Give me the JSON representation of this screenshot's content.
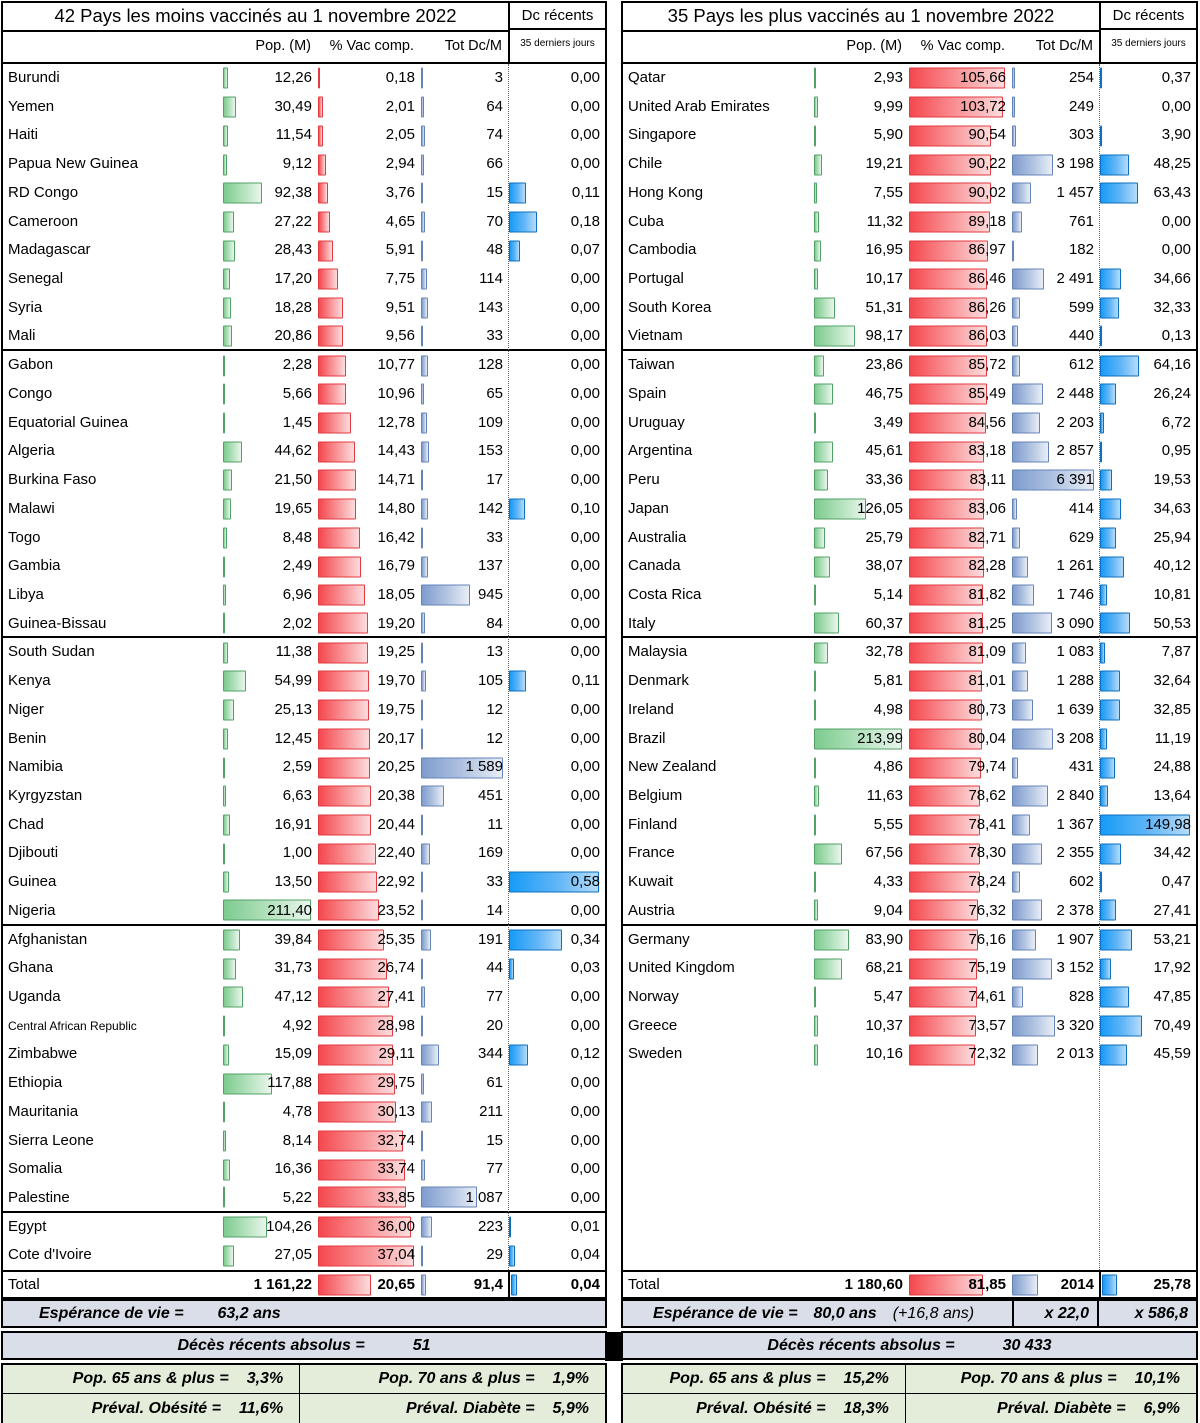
{
  "chart_data": {
    "type": "table",
    "tables": [
      {
        "title": "42 Pays les moins vaccinés au 1 novembre 2022",
        "headers": {
          "pop": "Pop. (M)",
          "vac": "% Vac comp.",
          "tot": "Tot Dc/M",
          "dc": "Dc récents",
          "dc_sub": "35 derniers jours"
        },
        "rows": [
          [
            "Burundi",
            "12,26",
            "0,18",
            "3",
            "0,00"
          ],
          [
            "Yemen",
            "30,49",
            "2,01",
            "64",
            "0,00"
          ],
          [
            "Haiti",
            "11,54",
            "2,05",
            "74",
            "0,00"
          ],
          [
            "Papua New Guinea",
            "9,12",
            "2,94",
            "66",
            "0,00"
          ],
          [
            "RD Congo",
            "92,38",
            "3,76",
            "15",
            "0,11"
          ],
          [
            "Cameroon",
            "27,22",
            "4,65",
            "70",
            "0,18"
          ],
          [
            "Madagascar",
            "28,43",
            "5,91",
            "48",
            "0,07"
          ],
          [
            "Senegal",
            "17,20",
            "7,75",
            "114",
            "0,00"
          ],
          [
            "Syria",
            "18,28",
            "9,51",
            "143",
            "0,00"
          ],
          [
            "Mali",
            "20,86",
            "9,56",
            "33",
            "0,00"
          ],
          [
            "Gabon",
            "2,28",
            "10,77",
            "128",
            "0,00"
          ],
          [
            "Congo",
            "5,66",
            "10,96",
            "65",
            "0,00"
          ],
          [
            "Equatorial Guinea",
            "1,45",
            "12,78",
            "109",
            "0,00"
          ],
          [
            "Algeria",
            "44,62",
            "14,43",
            "153",
            "0,00"
          ],
          [
            "Burkina Faso",
            "21,50",
            "14,71",
            "17",
            "0,00"
          ],
          [
            "Malawi",
            "19,65",
            "14,80",
            "142",
            "0,10"
          ],
          [
            "Togo",
            "8,48",
            "16,42",
            "33",
            "0,00"
          ],
          [
            "Gambia",
            "2,49",
            "16,79",
            "137",
            "0,00"
          ],
          [
            "Libya",
            "6,96",
            "18,05",
            "945",
            "0,00"
          ],
          [
            "Guinea-Bissau",
            "2,02",
            "19,20",
            "84",
            "0,00"
          ],
          [
            "South Sudan",
            "11,38",
            "19,25",
            "13",
            "0,00"
          ],
          [
            "Kenya",
            "54,99",
            "19,70",
            "105",
            "0,11"
          ],
          [
            "Niger",
            "25,13",
            "19,75",
            "12",
            "0,00"
          ],
          [
            "Benin",
            "12,45",
            "20,17",
            "12",
            "0,00"
          ],
          [
            "Namibia",
            "2,59",
            "20,25",
            "1 589",
            "0,00"
          ],
          [
            "Kyrgyzstan",
            "6,63",
            "20,38",
            "451",
            "0,00"
          ],
          [
            "Chad",
            "16,91",
            "20,44",
            "11",
            "0,00"
          ],
          [
            "Djibouti",
            "1,00",
            "22,40",
            "169",
            "0,00"
          ],
          [
            "Guinea",
            "13,50",
            "22,92",
            "33",
            "0,58"
          ],
          [
            "Nigeria",
            "211,40",
            "23,52",
            "14",
            "0,00"
          ],
          [
            "Afghanistan",
            "39,84",
            "25,35",
            "191",
            "0,34"
          ],
          [
            "Ghana",
            "31,73",
            "26,74",
            "44",
            "0,03"
          ],
          [
            "Uganda",
            "47,12",
            "27,41",
            "77",
            "0,00"
          ],
          [
            "Central African Republic",
            "4,92",
            "28,98",
            "20",
            "0,00"
          ],
          [
            "Zimbabwe",
            "15,09",
            "29,11",
            "344",
            "0,12"
          ],
          [
            "Ethiopia",
            "117,88",
            "29,75",
            "61",
            "0,00"
          ],
          [
            "Mauritania",
            "4,78",
            "30,13",
            "211",
            "0,00"
          ],
          [
            "Sierra Leone",
            "8,14",
            "32,74",
            "15",
            "0,00"
          ],
          [
            "Somalia",
            "16,36",
            "33,74",
            "77",
            "0,00"
          ],
          [
            "Palestine",
            "5,22",
            "33,85",
            "1 087",
            "0,00"
          ],
          [
            "Egypt",
            "104,26",
            "36,00",
            "223",
            "0,01"
          ],
          [
            "Cote d'Ivoire",
            "27,05",
            "37,04",
            "29",
            "0,04"
          ]
        ],
        "total": [
          "Total",
          "1 161,22",
          "20,65",
          "91,4",
          "0,04"
        ],
        "footer": {
          "life_label": "Espérance de vie =",
          "life_value": "63,2 ans",
          "deaths_label": "Décès récents absolus =",
          "deaths_value": "51",
          "pop65_label": "Pop. 65 ans & plus =",
          "pop65_value": "3,3%",
          "pop70_label": "Pop. 70 ans & plus =",
          "pop70_value": "1,9%",
          "obesity_label": "Préval. Obésité =",
          "obesity_value": "11,6%",
          "diabetes_label": "Préval. Diabète =",
          "diabetes_value": "5,9%"
        }
      },
      {
        "title": "35 Pays les plus vaccinés au 1 novembre 2022",
        "headers": {
          "pop": "Pop. (M)",
          "vac": "% Vac comp.",
          "tot": "Tot Dc/M",
          "dc": "Dc récents",
          "dc_sub": "35 derniers jours"
        },
        "rows": [
          [
            "Qatar",
            "2,93",
            "105,66",
            "254",
            "0,37"
          ],
          [
            "United Arab Emirates",
            "9,99",
            "103,72",
            "249",
            "0,00"
          ],
          [
            "Singapore",
            "5,90",
            "90,54",
            "303",
            "3,90"
          ],
          [
            "Chile",
            "19,21",
            "90,22",
            "3 198",
            "48,25"
          ],
          [
            "Hong Kong",
            "7,55",
            "90,02",
            "1 457",
            "63,43"
          ],
          [
            "Cuba",
            "11,32",
            "89,18",
            "761",
            "0,00"
          ],
          [
            "Cambodia",
            "16,95",
            "86,97",
            "182",
            "0,00"
          ],
          [
            "Portugal",
            "10,17",
            "86,46",
            "2 491",
            "34,66"
          ],
          [
            "South Korea",
            "51,31",
            "86,26",
            "599",
            "32,33"
          ],
          [
            "Vietnam",
            "98,17",
            "86,03",
            "440",
            "0,13"
          ],
          [
            "Taiwan",
            "23,86",
            "85,72",
            "612",
            "64,16"
          ],
          [
            "Spain",
            "46,75",
            "85,49",
            "2 448",
            "26,24"
          ],
          [
            "Uruguay",
            "3,49",
            "84,56",
            "2 203",
            "6,72"
          ],
          [
            "Argentina",
            "45,61",
            "83,18",
            "2 857",
            "0,95"
          ],
          [
            "Peru",
            "33,36",
            "83,11",
            "6 391",
            "19,53"
          ],
          [
            "Japan",
            "126,05",
            "83,06",
            "414",
            "34,63"
          ],
          [
            "Australia",
            "25,79",
            "82,71",
            "629",
            "25,94"
          ],
          [
            "Canada",
            "38,07",
            "82,28",
            "1 261",
            "40,12"
          ],
          [
            "Costa Rica",
            "5,14",
            "81,82",
            "1 746",
            "10,81"
          ],
          [
            "Italy",
            "60,37",
            "81,25",
            "3 090",
            "50,53"
          ],
          [
            "Malaysia",
            "32,78",
            "81,09",
            "1 083",
            "7,87"
          ],
          [
            "Denmark",
            "5,81",
            "81,01",
            "1 288",
            "32,64"
          ],
          [
            "Ireland",
            "4,98",
            "80,73",
            "1 639",
            "32,85"
          ],
          [
            "Brazil",
            "213,99",
            "80,04",
            "3 208",
            "11,19"
          ],
          [
            "New Zealand",
            "4,86",
            "79,74",
            "431",
            "24,88"
          ],
          [
            "Belgium",
            "11,63",
            "78,62",
            "2 840",
            "13,64"
          ],
          [
            "Finland",
            "5,55",
            "78,41",
            "1 367",
            "149,98"
          ],
          [
            "France",
            "67,56",
            "78,30",
            "2 355",
            "34,42"
          ],
          [
            "Kuwait",
            "4,33",
            "78,24",
            "602",
            "0,47"
          ],
          [
            "Austria",
            "9,04",
            "76,32",
            "2 378",
            "27,41"
          ],
          [
            "Germany",
            "83,90",
            "76,16",
            "1 907",
            "53,21"
          ],
          [
            "United Kingdom",
            "68,21",
            "75,19",
            "3 152",
            "17,92"
          ],
          [
            "Norway",
            "5,47",
            "74,61",
            "828",
            "47,85"
          ],
          [
            "Greece",
            "10,37",
            "73,57",
            "3 320",
            "70,49"
          ],
          [
            "Sweden",
            "10,16",
            "72,32",
            "2 013",
            "45,59"
          ]
        ],
        "total": [
          "Total",
          "1 180,60",
          "81,85",
          "2014",
          "25,78"
        ],
        "footer": {
          "life_label": "Espérance de vie =",
          "life_value": "80,0 ans",
          "life_extra": "(+16,8 ans)",
          "mult_tot": "x 22,0",
          "mult_dc": "x 586,8",
          "deaths_label": "Décès récents absolus =",
          "deaths_value": "30 433",
          "pop65_label": "Pop. 65 ans & plus =",
          "pop65_value": "15,2%",
          "pop70_label": "Pop. 70 ans & plus =",
          "pop70_value": "10,1%",
          "obesity_label": "Préval. Obésité =",
          "obesity_value": "18,3%",
          "diabetes_label": "Préval. Diabète =",
          "diabetes_value": "6,9%"
        }
      }
    ]
  },
  "colors": {
    "pop_bar": "#7ccb8e",
    "vac_bar": "#f4484e",
    "tot_bar": "#7f9cce",
    "dc_bar": "#169bf7",
    "footer_gray_bg": "#dadee8",
    "footer_green_bg": "#e3edda"
  }
}
